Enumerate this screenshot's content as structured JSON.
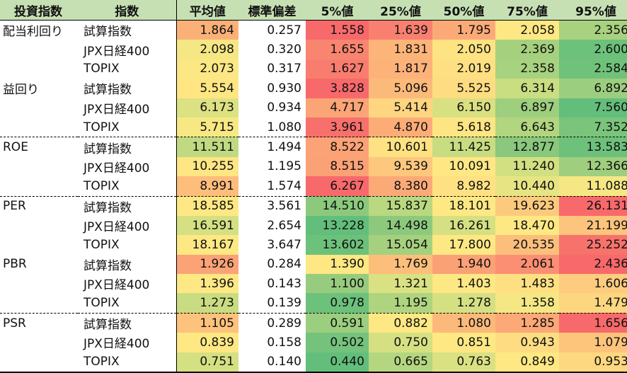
{
  "headers": [
    "投資指数",
    "指数",
    "平均値",
    "標準偏差",
    "5%値",
    "25%値",
    "50%値",
    "75%値",
    "95%値"
  ],
  "colors": {
    "header_bg": "#C6E0B4",
    "high_red": "#F8696B",
    "mid_yellow": "#FEE883",
    "low_green": "#63BE7B"
  },
  "rows": [
    {
      "group": "配当利回り",
      "index": "試算指数",
      "v": [
        "1.864",
        "0.257",
        "1.558",
        "1.639",
        "1.795",
        "2.058",
        "2.356"
      ],
      "c": [
        "#FBB078",
        "#fff",
        "#F8696B",
        "#F98070",
        "#FBAA77",
        "#FEE883",
        "#A8D27F"
      ]
    },
    {
      "group": "",
      "index": "JPX日経400",
      "v": [
        "2.098",
        "0.320",
        "1.655",
        "1.831",
        "2.050",
        "2.369",
        "2.600"
      ],
      "c": [
        "#F5E784",
        "#fff",
        "#F98570",
        "#FCB479",
        "#FEE382",
        "#A5D17E",
        "#6CC17B"
      ]
    },
    {
      "group": "",
      "index": "TOPIX",
      "v": [
        "2.073",
        "0.317",
        "1.627",
        "1.817",
        "2.019",
        "2.358",
        "2.584"
      ],
      "c": [
        "#FBE884",
        "#fff",
        "#F97D6F",
        "#FCB279",
        "#FEE082",
        "#A7D27F",
        "#70C27B"
      ]
    },
    {
      "group": "益回り",
      "index": "試算指数",
      "v": [
        "5.554",
        "0.930",
        "3.828",
        "5.096",
        "5.525",
        "6.314",
        "6.892"
      ],
      "c": [
        "#FFE683",
        "#fff",
        "#F8696B",
        "#FCBA7A",
        "#FEDC81",
        "#C9DD81",
        "#9BCE7E"
      ]
    },
    {
      "group": "",
      "index": "JPX日経400",
      "v": [
        "6.173",
        "0.934",
        "4.717",
        "5.414",
        "6.150",
        "6.897",
        "7.560"
      ],
      "c": [
        "#DCE182",
        "#fff",
        "#FBA476",
        "#FED580",
        "#D9E081",
        "#9DCF7E",
        "#63BE7B"
      ]
    },
    {
      "group": "",
      "index": "TOPIX",
      "v": [
        "5.715",
        "1.080",
        "3.961",
        "4.870",
        "5.618",
        "6.643",
        "7.352"
      ],
      "c": [
        "#F7E883",
        "#fff",
        "#F8706C",
        "#FBAC77",
        "#FEE583",
        "#B2D57F",
        "#7AC47C"
      ]
    },
    {
      "group": "ROE",
      "index": "試算指数",
      "v": [
        "11.511",
        "1.494",
        "8.522",
        "10.601",
        "11.425",
        "12.877",
        "13.583"
      ],
      "c": [
        "#BFDA81",
        "#fff",
        "#FBA276",
        "#FEE182",
        "#C8DC81",
        "#89C87D",
        "#6EC17B"
      ]
    },
    {
      "group": "",
      "index": "JPX日経400",
      "v": [
        "10.255",
        "1.195",
        "8.515",
        "9.539",
        "10.091",
        "11.240",
        "12.366"
      ],
      "c": [
        "#FDE683",
        "#fff",
        "#FBA176",
        "#FDC87D",
        "#FFE784",
        "#D3E082",
        "#9FCF7E"
      ]
    },
    {
      "group": "",
      "index": "TOPIX",
      "v": [
        "8.991",
        "1.574",
        "6.267",
        "8.380",
        "8.982",
        "10.440",
        "11.088"
      ],
      "c": [
        "#FDBD7B",
        "#fff",
        "#F8696B",
        "#FBAA77",
        "#FEE182",
        "#E6E483",
        "#F5E884"
      ]
    },
    {
      "group": "PER",
      "index": "試算指数",
      "v": [
        "18.585",
        "3.561",
        "14.510",
        "15.837",
        "18.101",
        "19.623",
        "26.131"
      ],
      "c": [
        "#FEE883",
        "#fff",
        "#8CC97D",
        "#B9D880",
        "#FEE883",
        "#FDCA7D",
        "#F8696B"
      ]
    },
    {
      "group": "",
      "index": "JPX日経400",
      "v": [
        "16.591",
        "2.654",
        "13.228",
        "14.498",
        "16.261",
        "18.470",
        "21.199"
      ],
      "c": [
        "#D5E082",
        "#fff",
        "#63BE7B",
        "#8DC97D",
        "#D5E082",
        "#FEE883",
        "#FCC47C"
      ]
    },
    {
      "group": "",
      "index": "TOPIX",
      "v": [
        "18.167",
        "3.647",
        "13.602",
        "15.054",
        "17.800",
        "20.535",
        "25.252"
      ],
      "c": [
        "#FEE883",
        "#fff",
        "#6CC17B",
        "#A5D17E",
        "#FEE883",
        "#FCBF7B",
        "#F8726C"
      ]
    },
    {
      "group": "PBR",
      "index": "試算指数",
      "v": [
        "1.926",
        "0.284",
        "1.390",
        "1.769",
        "1.940",
        "2.061",
        "2.436"
      ],
      "c": [
        "#FBA276",
        "#fff",
        "#FEE883",
        "#FCBF7B",
        "#FBA176",
        "#FA8F73",
        "#F8696B"
      ]
    },
    {
      "group": "",
      "index": "JPX日経400",
      "v": [
        "1.396",
        "0.143",
        "1.100",
        "1.321",
        "1.403",
        "1.483",
        "1.606"
      ],
      "c": [
        "#FEE883",
        "#fff",
        "#97CC7E",
        "#DAE182",
        "#FEE883",
        "#FEE082",
        "#FDCC7E"
      ]
    },
    {
      "group": "",
      "index": "TOPIX",
      "v": [
        "1.273",
        "0.139",
        "0.978",
        "1.195",
        "1.278",
        "1.358",
        "1.479"
      ],
      "c": [
        "#CADC81",
        "#fff",
        "#6CC17B",
        "#AFD47F",
        "#D5E082",
        "#F4E784",
        "#FDD680"
      ]
    },
    {
      "group": "PSR",
      "index": "試算指数",
      "v": [
        "1.105",
        "0.289",
        "0.591",
        "0.882",
        "1.080",
        "1.285",
        "1.656"
      ],
      "c": [
        "#FDC27C",
        "#fff",
        "#9BCE7E",
        "#FEE883",
        "#FCBA7A",
        "#FCA877",
        "#F8696B"
      ]
    },
    {
      "group": "",
      "index": "JPX日経400",
      "v": [
        "0.839",
        "0.158",
        "0.502",
        "0.750",
        "0.851",
        "0.943",
        "1.079"
      ],
      "c": [
        "#FEE883",
        "#fff",
        "#74C27C",
        "#D5E082",
        "#FEE883",
        "#FEDD82",
        "#FDC47C"
      ]
    },
    {
      "group": "",
      "index": "TOPIX",
      "v": [
        "0.751",
        "0.140",
        "0.440",
        "0.665",
        "0.763",
        "0.849",
        "0.953"
      ],
      "c": [
        "#D4E082",
        "#fff",
        "#63BE7B",
        "#B5D680",
        "#DAE182",
        "#FEE883",
        "#FED880"
      ]
    }
  ]
}
